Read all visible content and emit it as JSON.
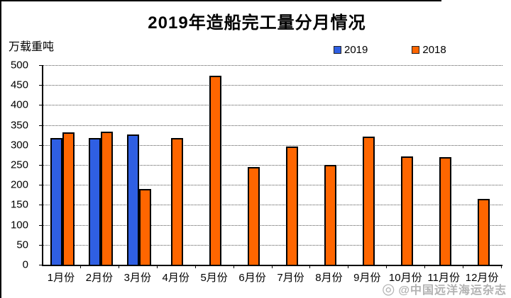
{
  "title": "2019年造船完工量分月情况",
  "y_axis_unit": "万载重吨",
  "watermark": {
    "icon": "weibo-icon",
    "text": "@中国远洋海运杂志"
  },
  "colors": {
    "blue_2019": "#2F5FE3",
    "orange_2018": "#FF6600",
    "bar_border": "#000000"
  },
  "chart_data": {
    "type": "bar",
    "title": "2019年造船完工量分月情况",
    "ylabel": "万载重吨",
    "xlabel": "",
    "categories": [
      "1月份",
      "2月份",
      "3月份",
      "4月份",
      "5月份",
      "6月份",
      "7月份",
      "8月份",
      "9月份",
      "10月份",
      "11月份",
      "12月份"
    ],
    "series": [
      {
        "name": "2019",
        "color": "#2F5FE3",
        "values": [
          318,
          318,
          327,
          null,
          null,
          null,
          null,
          null,
          null,
          null,
          null,
          null
        ]
      },
      {
        "name": "2018",
        "color": "#FF6600",
        "values": [
          331,
          333,
          190,
          318,
          473,
          244,
          296,
          250,
          321,
          271,
          270,
          165
        ]
      }
    ],
    "ylim": [
      0,
      500
    ],
    "ytick_interval": 50,
    "grid": "horizontal-dotted",
    "legend_position": "top-right"
  }
}
